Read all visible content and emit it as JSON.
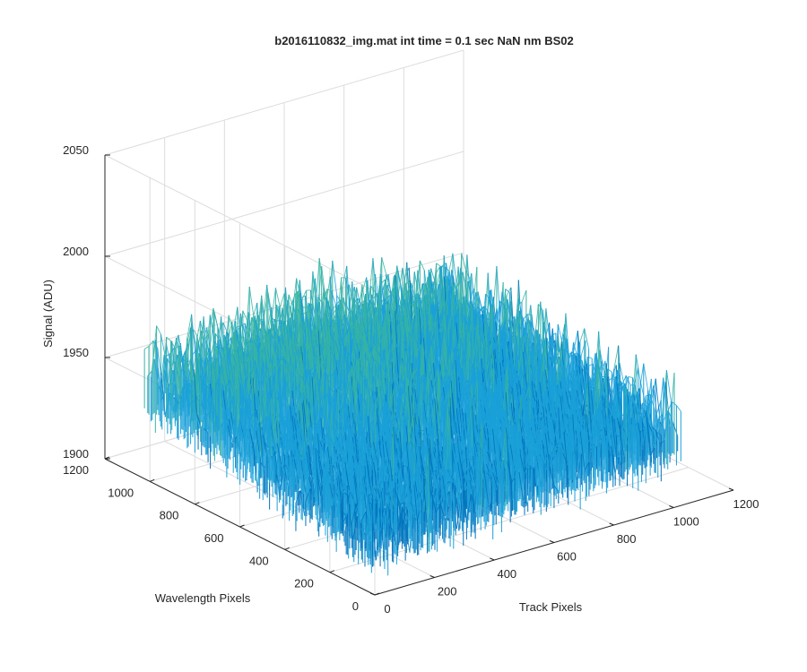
{
  "chart_data": {
    "type": "surface",
    "title": "b2016110832_img.mat int time = 0.1 sec  NaN nm BS02",
    "xlabel": "Track Pixels",
    "ylabel": "Wavelength Pixels",
    "zlabel": "Signal (ADU)",
    "xlim": [
      0,
      1200
    ],
    "ylim": [
      0,
      1200
    ],
    "zlim": [
      1900,
      2050
    ],
    "x_ticks": [
      0,
      200,
      400,
      600,
      800,
      1000,
      1200
    ],
    "y_ticks": [
      0,
      200,
      400,
      600,
      800,
      1000,
      1200
    ],
    "z_ticks": [
      1900,
      1950,
      2000,
      2050
    ],
    "grid": true,
    "colormap": "parula",
    "surface": {
      "x_extent": [
        0,
        1024
      ],
      "y_extent": [
        0,
        1024
      ],
      "mean_signal": 1950,
      "signal_range": [
        1915,
        2035
      ],
      "description_stats": "noisy dark frame, higher signal toward mid track / high wavelength"
    },
    "colors": {
      "low": "#0072BD",
      "mid_low": "#1aa0d8",
      "mid": "#35b3a5",
      "mid_high": "#8cc468",
      "high": "#e6c43a"
    }
  }
}
